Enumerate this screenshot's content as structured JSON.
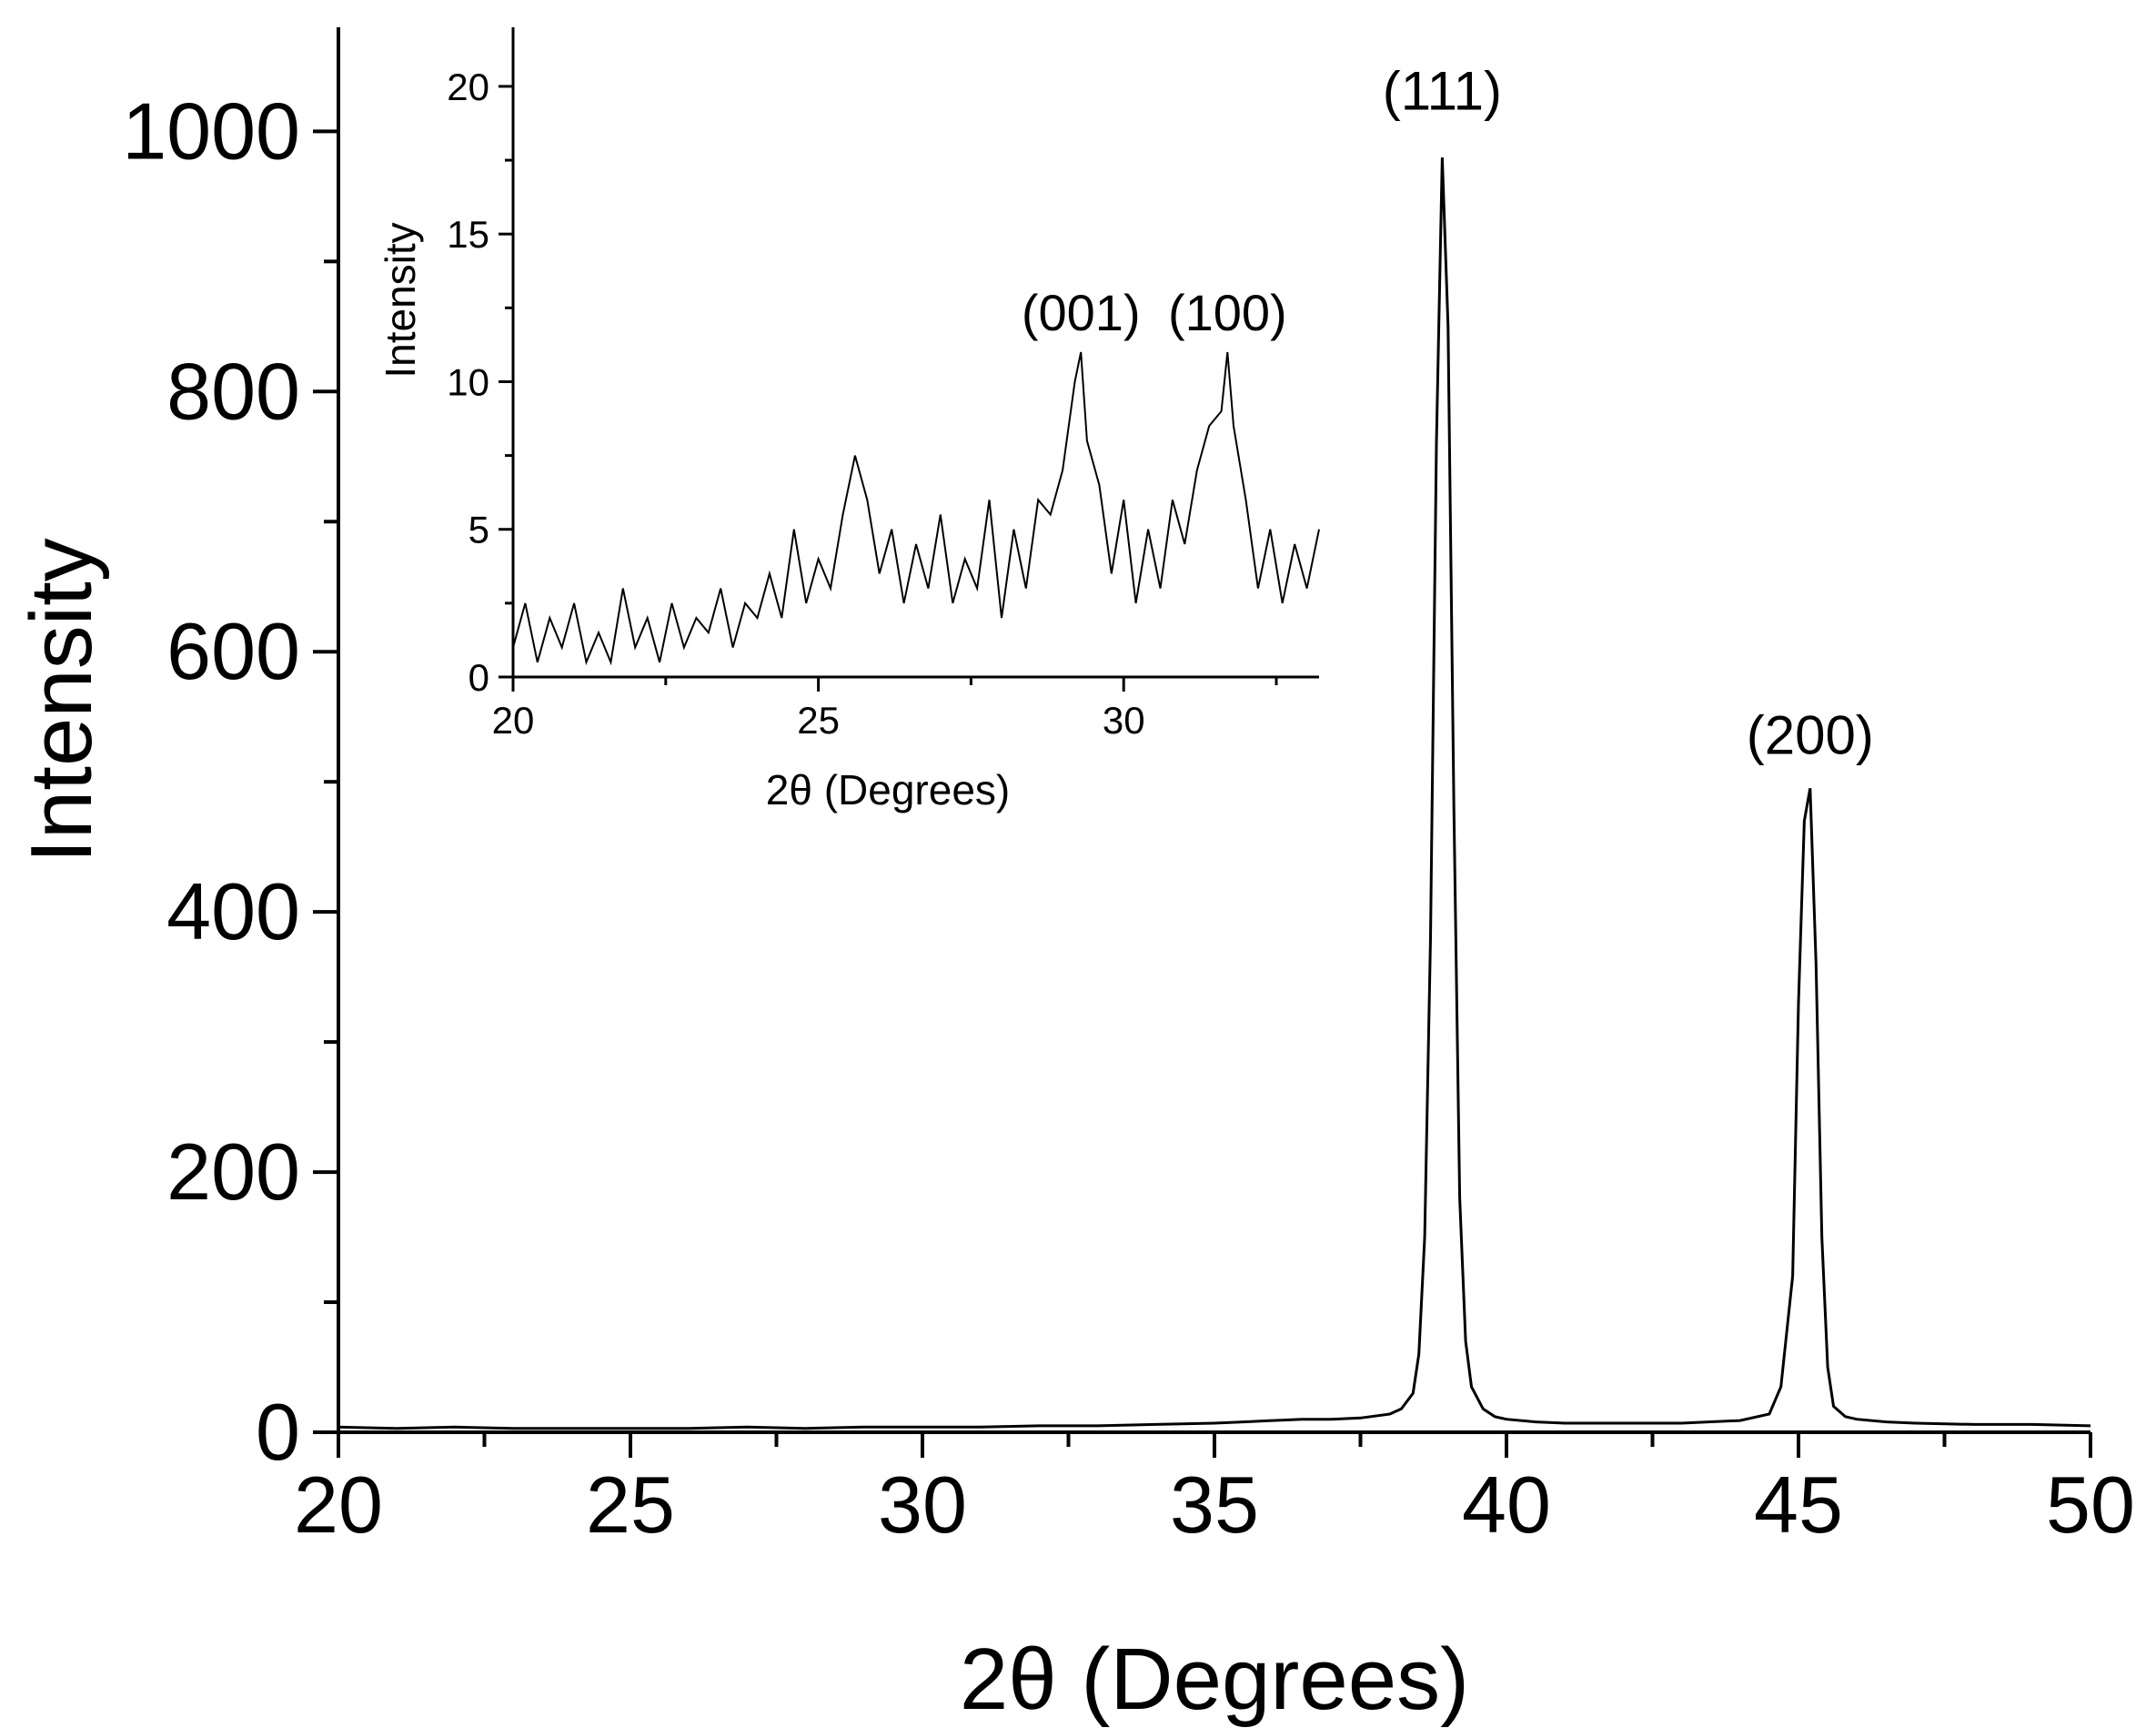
{
  "chart_data": [
    {
      "type": "line",
      "panel": "main",
      "title": "",
      "xlabel": "2θ (Degrees)",
      "ylabel": "Intensity",
      "xlim": [
        20,
        50
      ],
      "ylim": [
        0,
        1080
      ],
      "xticks": [
        20,
        25,
        30,
        35,
        40,
        45,
        50
      ],
      "xtick_labels": [
        "20",
        "25",
        "30",
        "35",
        "40",
        "45",
        "50"
      ],
      "yticks": [
        0,
        200,
        400,
        600,
        800,
        1000
      ],
      "ytick_labels": [
        "0",
        "200",
        "400",
        "600",
        "800",
        "1000"
      ],
      "grid": false,
      "legend": "none",
      "line_color": "#000000",
      "annotations": [
        {
          "text": "(111)",
          "x": 38.9,
          "y": 990
        },
        {
          "text": "(200)",
          "x": 45.2,
          "y": 495
        }
      ],
      "series": [
        {
          "x": [
            20,
            21,
            22,
            23,
            24,
            25,
            26,
            27,
            28,
            29,
            30,
            31,
            32,
            33,
            34,
            35,
            35.5,
            36,
            36.5,
            37,
            37.5,
            38,
            38.2,
            38.4,
            38.5,
            38.6,
            38.7,
            38.8,
            38.9,
            39.0,
            39.1,
            39.2,
            39.3,
            39.4,
            39.6,
            39.8,
            40,
            40.5,
            41,
            42,
            43,
            44,
            44.5,
            44.7,
            44.9,
            45.0,
            45.1,
            45.2,
            45.3,
            45.4,
            45.5,
            45.6,
            45.8,
            46,
            46.5,
            47,
            48,
            49,
            50
          ],
          "y": [
            4,
            3,
            4,
            3,
            3,
            3,
            3,
            4,
            3,
            4,
            4,
            4,
            5,
            5,
            6,
            7,
            8,
            9,
            10,
            10,
            11,
            14,
            18,
            30,
            60,
            150,
            380,
            760,
            980,
            850,
            480,
            180,
            70,
            35,
            18,
            12,
            10,
            8,
            7,
            7,
            7,
            9,
            14,
            35,
            120,
            330,
            470,
            495,
            360,
            150,
            50,
            20,
            12,
            10,
            8,
            7,
            6,
            6,
            5
          ]
        }
      ]
    },
    {
      "type": "line",
      "panel": "inset",
      "title": "",
      "xlabel": "2θ (Degrees)",
      "ylabel": "Intensity",
      "xlim": [
        20,
        33.2
      ],
      "ylim": [
        0,
        22
      ],
      "xticks": [
        20,
        25,
        30
      ],
      "xtick_labels": [
        "20",
        "25",
        "30"
      ],
      "yticks": [
        0,
        5,
        10,
        15,
        20
      ],
      "ytick_labels": [
        "0",
        "5",
        "10",
        "15",
        "20"
      ],
      "grid": false,
      "legend": "none",
      "line_color": "#000000",
      "annotations": [
        {
          "text": "(001)",
          "x": 29.3,
          "y": 11
        },
        {
          "text": "(100)",
          "x": 31.7,
          "y": 11
        }
      ],
      "series": [
        {
          "x": [
            20,
            20.2,
            20.4,
            20.6,
            20.8,
            21,
            21.2,
            21.4,
            21.6,
            21.8,
            22,
            22.2,
            22.4,
            22.6,
            22.8,
            23,
            23.2,
            23.4,
            23.6,
            23.8,
            24,
            24.2,
            24.4,
            24.6,
            24.8,
            25,
            25.2,
            25.4,
            25.6,
            25.8,
            26,
            26.2,
            26.4,
            26.6,
            26.8,
            27,
            27.2,
            27.4,
            27.6,
            27.8,
            28,
            28.2,
            28.4,
            28.6,
            28.8,
            29,
            29.2,
            29.3,
            29.4,
            29.6,
            29.8,
            30,
            30.2,
            30.4,
            30.6,
            30.8,
            31,
            31.2,
            31.4,
            31.6,
            31.7,
            31.8,
            32,
            32.2,
            32.4,
            32.6,
            32.8,
            33,
            33.2
          ],
          "y": [
            1,
            2.5,
            0.5,
            2,
            1,
            2.5,
            0.5,
            1.5,
            0.5,
            3,
            1,
            2,
            0.5,
            2.5,
            1,
            2,
            1.5,
            3,
            1,
            2.5,
            2,
            3.5,
            2,
            5,
            2.5,
            4,
            3,
            5.5,
            7.5,
            6,
            3.5,
            5,
            2.5,
            4.5,
            3,
            5.5,
            2.5,
            4,
            3,
            6,
            2,
            5,
            3,
            6,
            5.5,
            7,
            10,
            11,
            8,
            6.5,
            3.5,
            6,
            2.5,
            5,
            3,
            6,
            4.5,
            7,
            8.5,
            9,
            11,
            8.5,
            6,
            3,
            5,
            2.5,
            4.5,
            3,
            5
          ]
        }
      ]
    }
  ]
}
